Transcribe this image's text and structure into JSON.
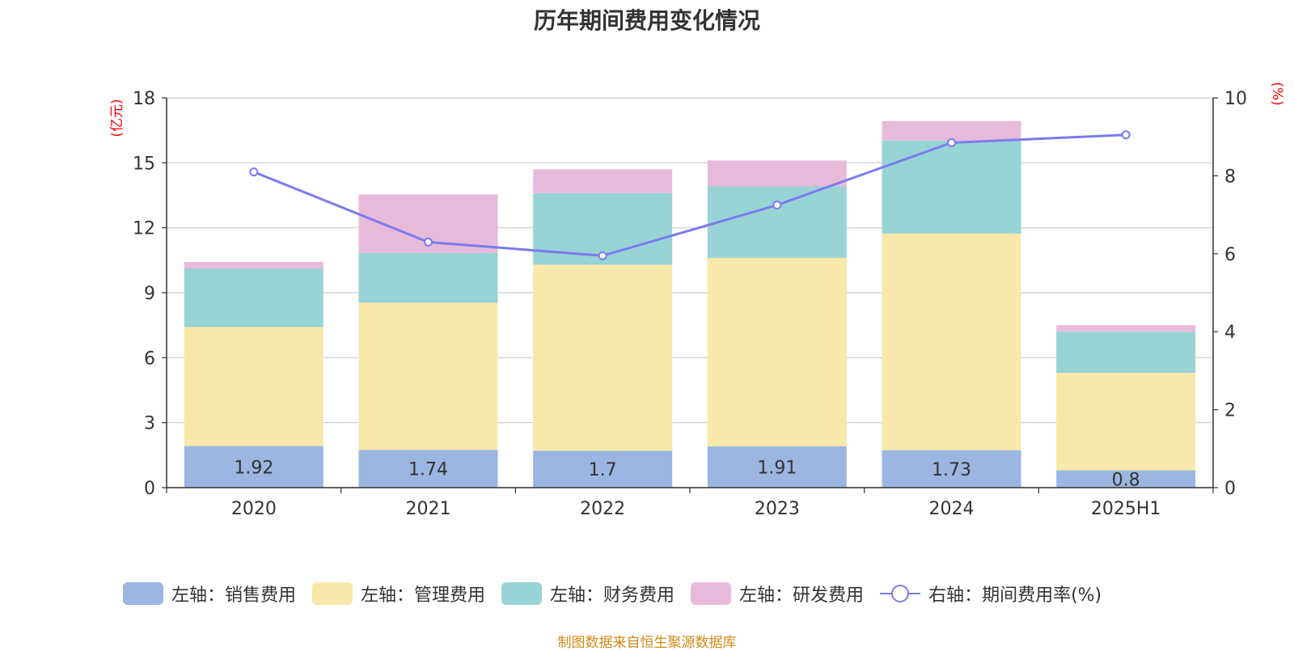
{
  "chart_data": {
    "type": "bar",
    "title": "历年期间费用变化情况",
    "categories": [
      "2020",
      "2021",
      "2022",
      "2023",
      "2024",
      "2025H1"
    ],
    "left_axis": {
      "label": "(亿元)",
      "ylim": [
        0,
        18
      ],
      "ticks": [
        "0",
        "3",
        "6",
        "9",
        "12",
        "15",
        "18"
      ]
    },
    "right_axis": {
      "label": "(%)",
      "ylim": [
        0,
        10
      ],
      "ticks": [
        "0",
        "2",
        "4",
        "6",
        "8",
        "10"
      ]
    },
    "grid": true,
    "legend_position": "bottom",
    "series": [
      {
        "name": "左轴：销售费用",
        "axis": "left",
        "kind": "bar",
        "color": "#9ab6e1",
        "values": [
          1.92,
          1.74,
          1.7,
          1.91,
          1.73,
          0.8
        ],
        "labels": [
          "1.92",
          "1.74",
          "1.7",
          "1.91",
          "1.73",
          "0.8"
        ]
      },
      {
        "name": "左轴：管理费用",
        "axis": "left",
        "kind": "bar",
        "color": "#f8e8a9",
        "values": [
          5.5,
          6.8,
          8.6,
          8.7,
          10.0,
          4.5
        ]
      },
      {
        "name": "左轴：财务费用",
        "axis": "left",
        "kind": "bar",
        "color": "#98d4d4",
        "values": [
          2.7,
          2.3,
          3.3,
          3.3,
          4.3,
          1.9
        ]
      },
      {
        "name": "左轴：研发费用",
        "axis": "left",
        "kind": "bar",
        "color": "#e8bada",
        "values": [
          0.3,
          2.7,
          1.1,
          1.2,
          0.9,
          0.3
        ]
      },
      {
        "name": "右轴：期间费用率(%)",
        "axis": "right",
        "kind": "line",
        "color": "#7b7bef",
        "values": [
          8.1,
          6.3,
          5.95,
          7.25,
          8.85,
          9.05
        ]
      }
    ],
    "source": "制图数据来自恒生聚源数据库"
  }
}
